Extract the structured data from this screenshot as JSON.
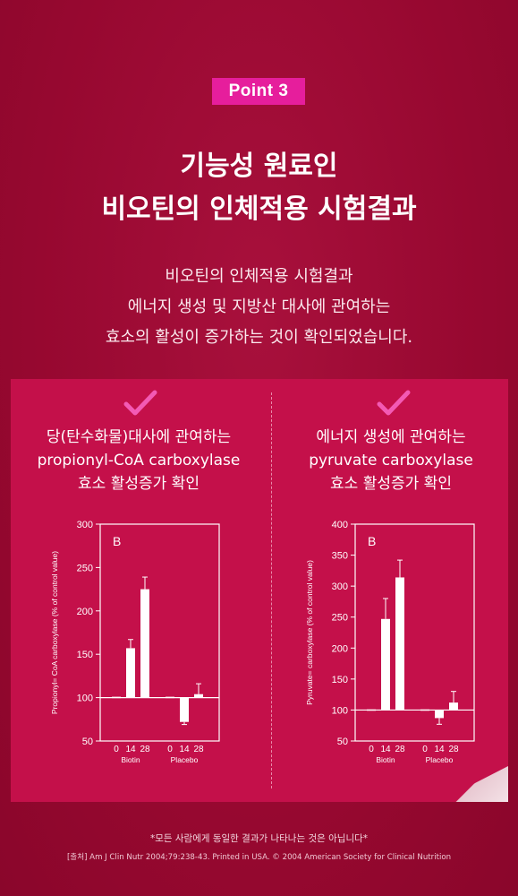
{
  "badge": "Point  3",
  "title": {
    "line1": "기능성 원료인",
    "line2": "비오틴의 인체적용 시험결과"
  },
  "subtitle": {
    "line1": "비오틴의 인체적용 시험결과",
    "line2": "에너지 생성 및 지방산 대사에 관여하는",
    "line3": "효소의 활성이 증가하는 것이 확인되었습니다."
  },
  "left": {
    "line1": "당(탄수화물)대사에 관여하는",
    "line2": "propionyl-CoA carboxylase",
    "line3": "효소 활성증가 확인"
  },
  "right": {
    "line1": "에너지 생성에 관여하는",
    "line2": "pyruvate carboxylase",
    "line3": "효소 활성증가 확인"
  },
  "chart_data": [
    {
      "type": "bar",
      "panel_label": "B",
      "ylabel": "Propionyl= CoA carboxylase (% of control value)",
      "ylim": [
        50,
        300
      ],
      "yticks": [
        50,
        100,
        150,
        200,
        250,
        300
      ],
      "baseline": 100,
      "groups": [
        "Biotin",
        "Placebo"
      ],
      "categories": [
        "0",
        "14",
        "28"
      ],
      "series": [
        {
          "group": "Biotin",
          "values": [
            101,
            157,
            225
          ],
          "errors": [
            0,
            10,
            14
          ]
        },
        {
          "group": "Placebo",
          "values": [
            101,
            72,
            104
          ],
          "errors": [
            0,
            3,
            12
          ]
        }
      ]
    },
    {
      "type": "bar",
      "panel_label": "B",
      "ylabel": "Pyruvate= carboxylase (% of control value)",
      "ylim": [
        50,
        400
      ],
      "yticks": [
        50,
        100,
        150,
        200,
        250,
        300,
        350,
        400
      ],
      "baseline": 100,
      "groups": [
        "Biotin",
        "Placebo"
      ],
      "categories": [
        "0",
        "14",
        "28"
      ],
      "series": [
        {
          "group": "Biotin",
          "values": [
            101,
            247,
            314
          ],
          "errors": [
            0,
            33,
            28
          ]
        },
        {
          "group": "Placebo",
          "values": [
            101,
            87,
            112
          ],
          "errors": [
            0,
            10,
            18
          ]
        }
      ]
    }
  ],
  "footer": {
    "note": "*모든 사람에게 동일한 결과가 나타나는 것은 아닙니다*",
    "source": "[출처] Am J Clin Nutr 2004;79:238-43. Printed in USA. © 2004 American Society for Clinical Nutrition"
  },
  "colors": {
    "background": "#9c0a33",
    "panel": "#c4104a",
    "badge": "#e61e9c",
    "check": "#f35ab4"
  }
}
